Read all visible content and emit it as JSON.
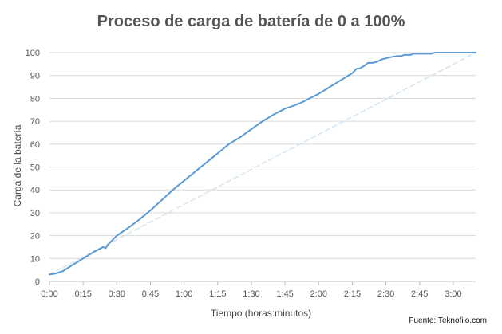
{
  "chart_data": {
    "type": "line",
    "title": "Proceso de carga de batería de 0 a 100%",
    "xlabel": "Tiempo (horas:minutos)",
    "ylabel": "Carga de la batería",
    "source": "Fuente: Teknofilo.com",
    "x_unit": "minutes",
    "xlim": [
      0,
      190
    ],
    "ylim": [
      0,
      100
    ],
    "x_ticks": [
      {
        "value": 0,
        "label": "0:00"
      },
      {
        "value": 15,
        "label": "0:15"
      },
      {
        "value": 30,
        "label": "0:30"
      },
      {
        "value": 45,
        "label": "0:45"
      },
      {
        "value": 60,
        "label": "1:00"
      },
      {
        "value": 75,
        "label": "1:15"
      },
      {
        "value": 90,
        "label": "1:30"
      },
      {
        "value": 105,
        "label": "1:45"
      },
      {
        "value": 120,
        "label": "2:00"
      },
      {
        "value": 135,
        "label": "2:15"
      },
      {
        "value": 150,
        "label": "2:30"
      },
      {
        "value": 165,
        "label": "2:45"
      },
      {
        "value": 180,
        "label": "3:00"
      }
    ],
    "y_ticks": [
      0,
      10,
      20,
      30,
      40,
      50,
      60,
      70,
      80,
      90,
      100
    ],
    "grid": "horizontal",
    "legend": "none",
    "series": [
      {
        "style": "solid",
        "color": "#5b9bd5",
        "x": [
          0,
          3,
          6,
          10,
          15,
          20,
          24,
          25,
          26,
          27,
          30,
          33,
          36,
          40,
          45,
          50,
          55,
          60,
          65,
          70,
          75,
          80,
          85,
          90,
          95,
          100,
          105,
          108,
          112,
          116,
          120,
          125,
          130,
          135,
          137,
          138,
          140,
          142,
          144,
          146,
          148,
          150,
          152,
          155,
          157,
          158,
          160,
          161,
          162,
          164,
          165,
          168,
          170,
          172,
          174,
          176,
          178,
          180,
          182,
          185,
          188,
          190
        ],
        "y": [
          3,
          3.5,
          4.5,
          7,
          10,
          13,
          15,
          14.5,
          16,
          17,
          20,
          22,
          24,
          27,
          31,
          35.5,
          40,
          44,
          48,
          52,
          56,
          60,
          63,
          66.5,
          70,
          73,
          75.5,
          76.5,
          78,
          80,
          82,
          85,
          88,
          91,
          93,
          93,
          94,
          95.5,
          95.5,
          96,
          97,
          97.5,
          98,
          98.5,
          98.5,
          99,
          99,
          99,
          99.5,
          99.5,
          99.5,
          99.5,
          99.5,
          100,
          100,
          100,
          100,
          100,
          100,
          100,
          100,
          100
        ]
      },
      {
        "style": "dashed",
        "color": "#d6e6f2",
        "x": [
          0,
          190
        ],
        "y": [
          3,
          100
        ]
      }
    ]
  }
}
